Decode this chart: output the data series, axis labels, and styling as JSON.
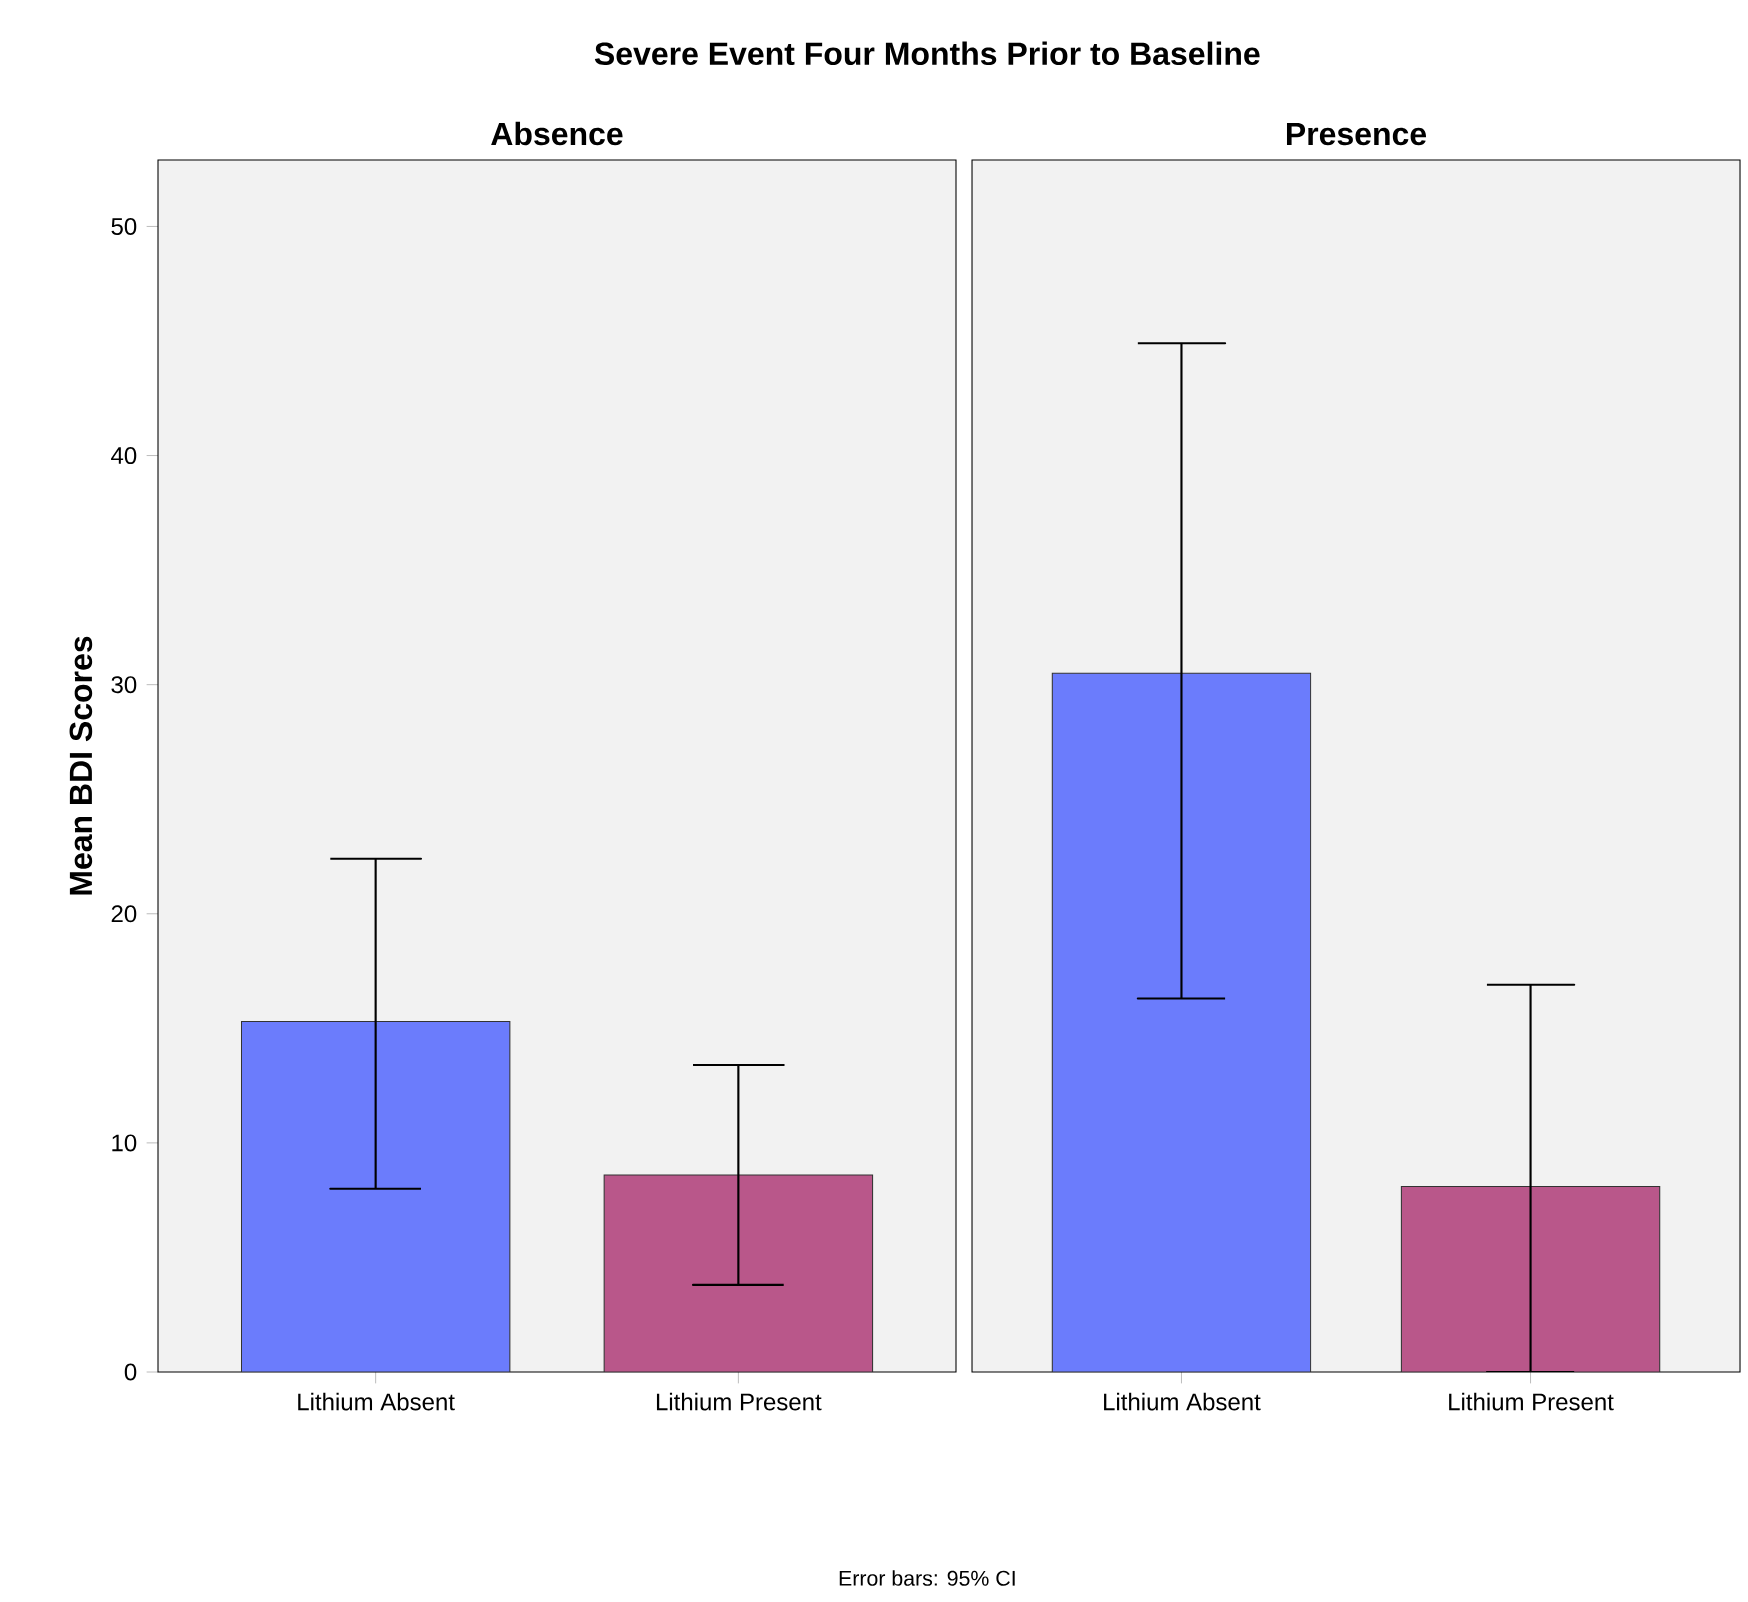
{
  "chart_data": [
    {
      "type": "bar",
      "title": "Severe Event Four Months Prior to Baseline",
      "subtitle": "Absence",
      "ylabel": "Mean BDI Scores",
      "categories": [
        "Lithium Absent",
        "Lithium Present"
      ],
      "values": [
        15.3,
        8.6
      ],
      "colors": [
        "#6b7cfc",
        "#b9578a"
      ],
      "errors": [
        [
          8.0,
          22.4
        ],
        [
          3.8,
          13.4
        ]
      ],
      "ylim": [
        0,
        52.9
      ],
      "yticks": [
        0,
        10,
        20,
        30,
        40,
        50
      ],
      "annotations": [
        "Error bars: 95% CI"
      ]
    },
    {
      "type": "bar",
      "subtitle": "Presence",
      "categories": [
        "Lithium Absent",
        "Lithium Present"
      ],
      "values": [
        30.5,
        8.1
      ],
      "colors": [
        "#6b7cfc",
        "#b9578a"
      ],
      "errors": [
        [
          16.3,
          44.9
        ],
        [
          0,
          16.9
        ]
      ],
      "ylim": [
        0,
        52.9
      ],
      "tick_labels": "x"
    }
  ]
}
